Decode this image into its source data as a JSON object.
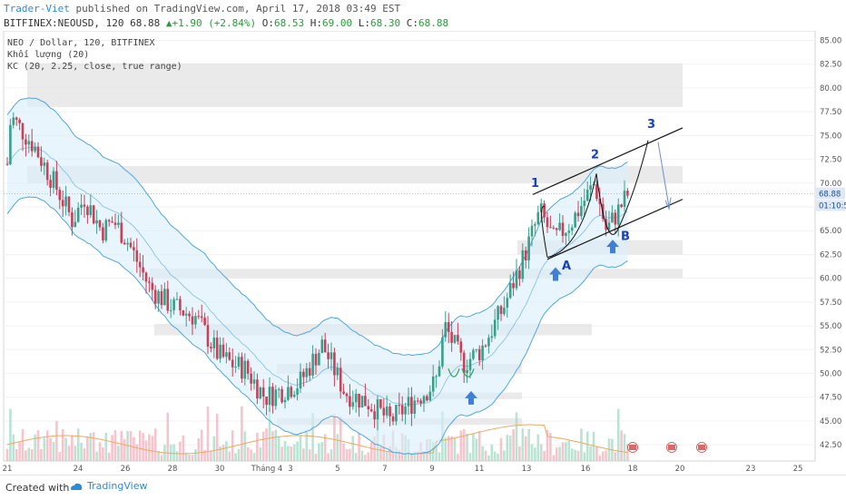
{
  "header": {
    "author": "Trader-Viet",
    "published_text": "published on TradingView.com, April 17, 2018 03:49 EST",
    "symbol": "BITFINEX:NEOUSD, 120",
    "last": "68.88",
    "change": "+1.90 (+2.84%)",
    "open_label": "O:",
    "open": "68.53",
    "high_label": "H:",
    "high": "69.00",
    "low_label": "L:",
    "low": "68.30",
    "close_label": "C:",
    "close": "68.88"
  },
  "legend": {
    "line1": "NEO / Dollar, 120, BITFINEX",
    "line2": "Khối lượng (20)",
    "line3": "KC (20, 2.25, close, true range)"
  },
  "footer": {
    "created_with": "Created with",
    "brand": "TradingView"
  },
  "colors": {
    "up": "#3a9f8a",
    "down": "#c2435a",
    "kc_line": "#4fa6e0",
    "kc_fill": "#dbeffa",
    "zone": "#e3e3e3",
    "annotation": "#1a3fbf",
    "arrow": "#3f7fd4",
    "price_label": "#dfe9f5",
    "vol_up": "#a9dcc9",
    "vol_down": "#f2b7c0",
    "ma": "#f0a85e"
  },
  "chart_data": {
    "type": "candlestick",
    "title": "NEO / Dollar, 120, BITFINEX",
    "y_axis_ticks": [
      "85.00",
      "82.50",
      "80.00",
      "77.50",
      "75.00",
      "72.50",
      "70.00",
      "67.50",
      "65.00",
      "62.50",
      "60.00",
      "57.50",
      "55.00",
      "52.50",
      "50.00",
      "47.50",
      "45.00",
      "42.50"
    ],
    "ylim": [
      40.8,
      86.0
    ],
    "x_axis_ticks": [
      "21",
      "24",
      "26",
      "28",
      "30",
      "Tháng 4",
      "3",
      "5",
      "7",
      "9",
      "11",
      "13",
      "16",
      "18",
      "20",
      "23",
      "25"
    ],
    "current_price_label": "68.88",
    "countdown_label": "01:10:5",
    "close_path": [
      {
        "x": "21 (18:00)",
        "y": 72.0
      },
      {
        "x": "21",
        "y": 77.0
      },
      {
        "x": "22",
        "y": 74.0
      },
      {
        "x": "23",
        "y": 69.0
      },
      {
        "x": "23 (12:00)",
        "y": 66.0
      },
      {
        "x": "24",
        "y": 68.5
      },
      {
        "x": "25",
        "y": 65.0
      },
      {
        "x": "25 (12:00)",
        "y": 66.0
      },
      {
        "x": "26",
        "y": 64.0
      },
      {
        "x": "27",
        "y": 59.0
      },
      {
        "x": "28",
        "y": 57.0
      },
      {
        "x": "29",
        "y": 56.0
      },
      {
        "x": "30",
        "y": 52.0
      },
      {
        "x": "31",
        "y": 51.0
      },
      {
        "x": "Tháng 4",
        "y": 50.5
      },
      {
        "x": "2",
        "y": 47.5
      },
      {
        "x": "3",
        "y": 49.0
      },
      {
        "x": "4",
        "y": 53.0
      },
      {
        "x": "5",
        "y": 48.0
      },
      {
        "x": "6",
        "y": 47.0
      },
      {
        "x": "7",
        "y": 45.0
      },
      {
        "x": "8",
        "y": 47.5
      },
      {
        "x": "9",
        "y": 49.0
      },
      {
        "x": "9 (12:00)",
        "y": 55.0
      },
      {
        "x": "10",
        "y": 51.0
      },
      {
        "x": "11",
        "y": 52.5
      },
      {
        "x": "12",
        "y": 57.0
      },
      {
        "x": "13",
        "y": 63.0
      },
      {
        "x": "13 (12:00)",
        "y": 67.0
      },
      {
        "x": "14",
        "y": 64.0
      },
      {
        "x": "15",
        "y": 66.0
      },
      {
        "x": "16",
        "y": 70.0
      },
      {
        "x": "16 (12:00)",
        "y": 65.0
      },
      {
        "x": "17",
        "y": 68.88
      }
    ],
    "support_resistance_zones": [
      {
        "from": 78.0,
        "to": 82.6
      },
      {
        "from": 70.0,
        "to": 71.8
      },
      {
        "from": 62.5,
        "to": 64.0
      },
      {
        "from": 60.0,
        "to": 61.0
      },
      {
        "from": 54.0,
        "to": 55.2
      },
      {
        "from": 50.0,
        "to": 51.0
      },
      {
        "from": 47.3,
        "to": 48.0
      },
      {
        "from": 44.6,
        "to": 45.3
      }
    ],
    "annotations": [
      "1",
      "2",
      "3",
      "A",
      "B"
    ],
    "series": [
      {
        "name": "Khối lượng (20)"
      },
      {
        "name": "KC (20, 2.25, close, true range)"
      }
    ]
  }
}
